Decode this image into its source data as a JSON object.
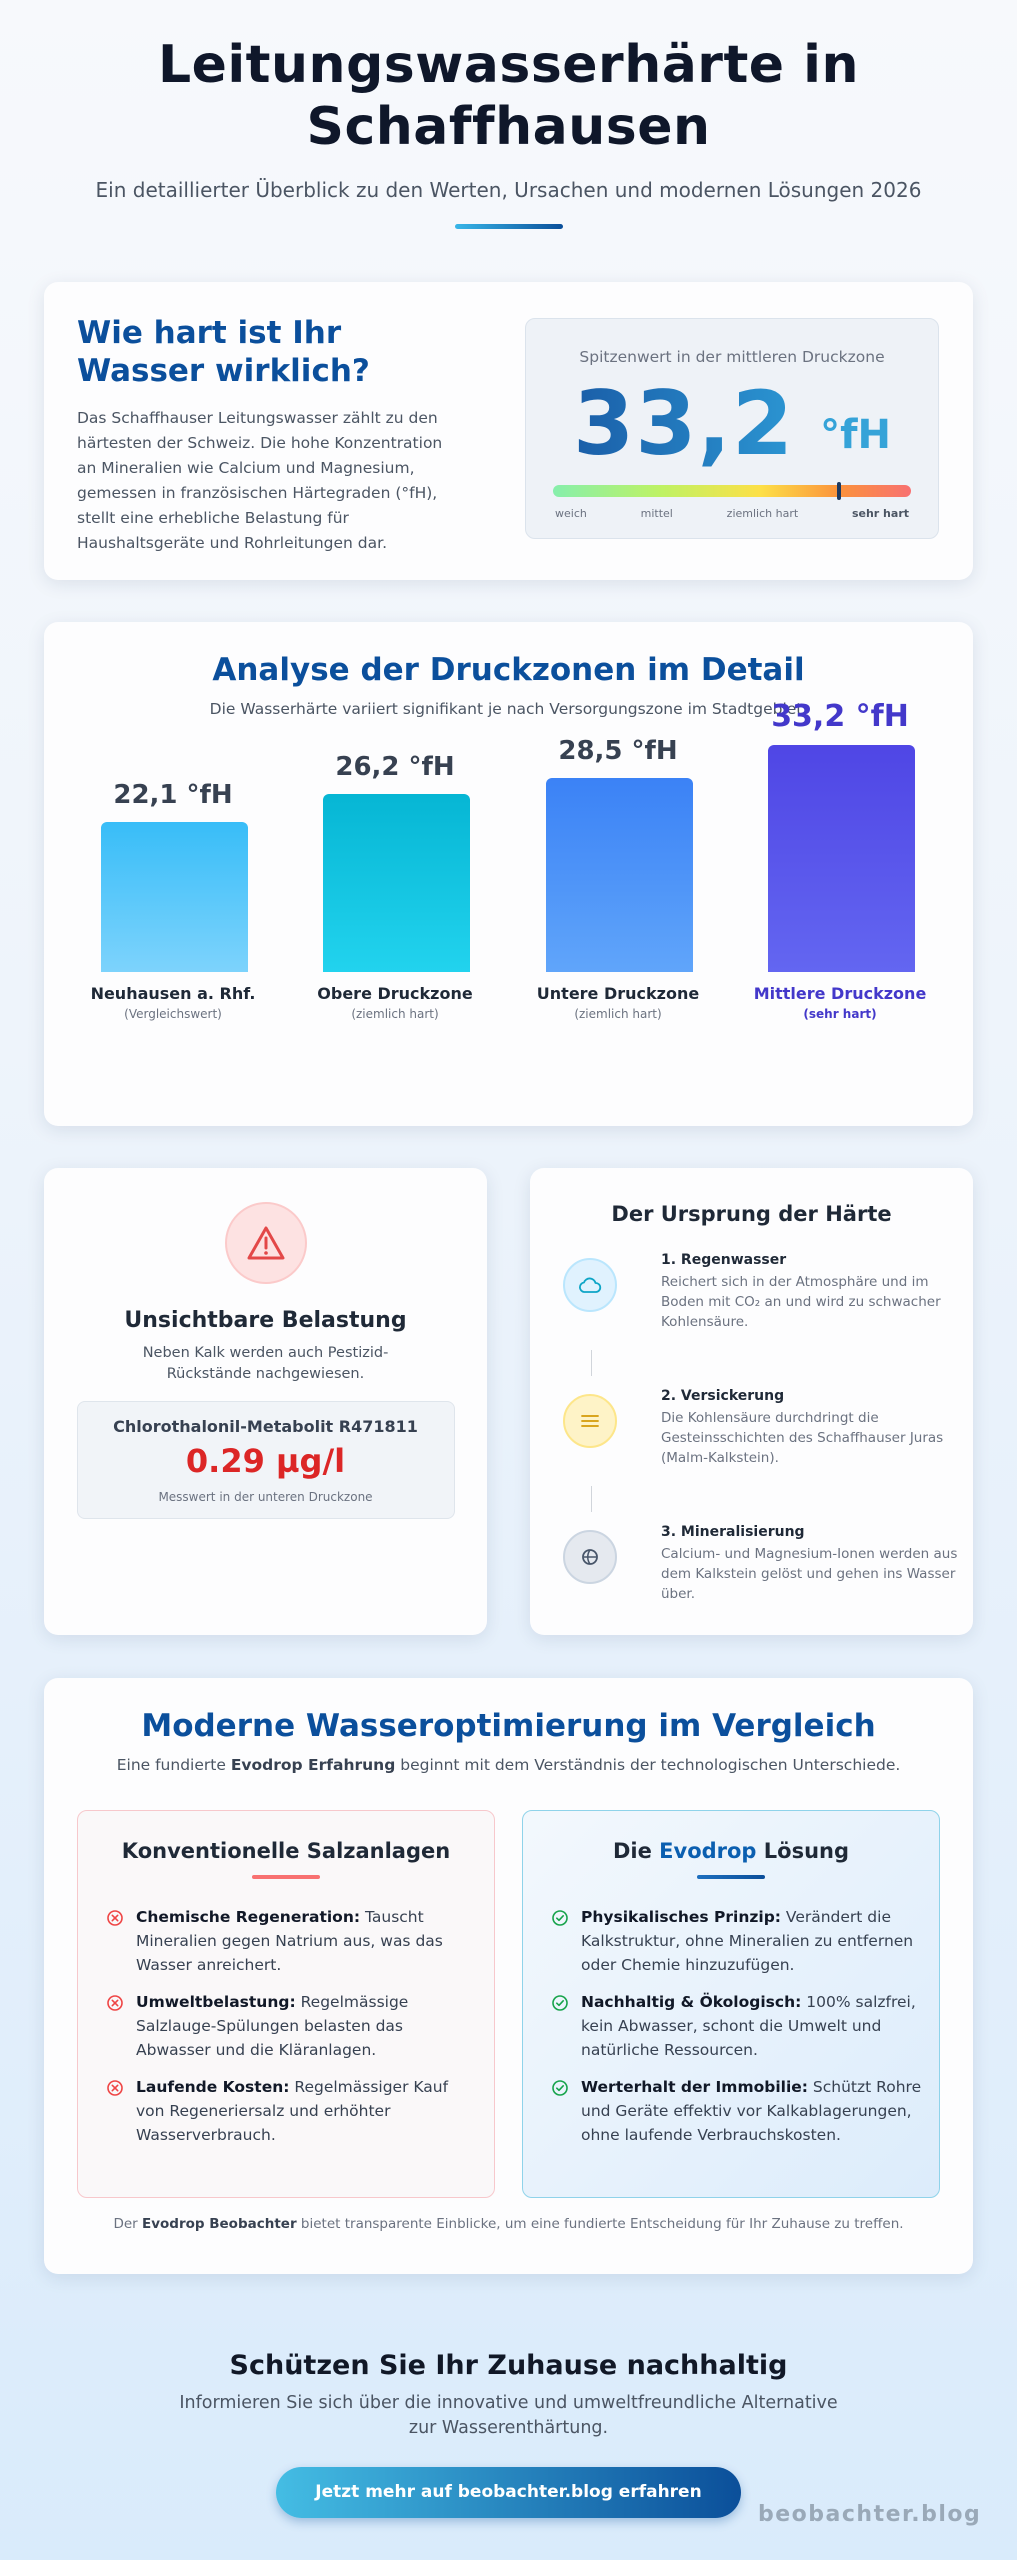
{
  "hero": {
    "title": "Leitungswasserhärte in Schaffhausen",
    "subtitle": "Ein detaillierter Überblick zu den Werten, Ursachen und modernen Lösungen 2026"
  },
  "intro": {
    "heading": "Wie hart ist Ihr Wasser wirklich?",
    "text": "Das Schaffhauser Leitungswasser zählt zu den härtesten der Schweiz. Die hohe Konzentration an Mineralien wie Calcium und Magnesium, gemessen in französischen Härtegraden (°fH), stellt eine erhebliche Belastung für Haushaltsgeräte und Rohrleitungen dar.",
    "gauge": {
      "label": "Spitzenwert in der mittleren Druckzone",
      "value": "33,2",
      "unit": "°fH",
      "level_fraction": 0.8,
      "ticks": [
        "weich",
        "mittel",
        "ziemlich hart",
        "sehr hart"
      ]
    }
  },
  "zones": {
    "heading": "Analyse der Druckzonen im Detail",
    "subtitle": "Die Wasserhärte variiert signifikant je nach Versorgungszone im Stadtgebiet.",
    "bars": [
      {
        "label": "22,1 °fH",
        "value": 22.1,
        "name": "Neuhausen a. Rhf.",
        "note": "(Vergleichswert)",
        "color_top": "#38bdf8",
        "color_bottom": "#7dd3fc",
        "highlight": false
      },
      {
        "label": "26,2 °fH",
        "value": 26.2,
        "name": "Obere Druckzone",
        "note": "(ziemlich hart)",
        "color_top": "#06b6d4",
        "color_bottom": "#22d3ee",
        "highlight": false
      },
      {
        "label": "28,5 °fH",
        "value": 28.5,
        "name": "Untere Druckzone",
        "note": "(ziemlich hart)",
        "color_top": "#3b82f6",
        "color_bottom": "#60a5fa",
        "highlight": false
      },
      {
        "label": "33,2 °fH",
        "value": 33.2,
        "name": "Mittlere Druckzone",
        "note": "(sehr hart)",
        "color_top": "#4f46e5",
        "color_bottom": "#6366f1",
        "highlight": true
      }
    ]
  },
  "burden": {
    "heading": "Unsichtbare Belastung",
    "text": "Neben Kalk werden auch Pestizid-Rückstände nachgewiesen.",
    "metric_label": "Chlorothalonil-Metabolit R471811",
    "metric_value": "0.29 µg/l",
    "metric_note": "Messwert in der unteren Druckzone"
  },
  "origin": {
    "heading": "Der Ursprung der Härte",
    "steps": [
      {
        "title": "1. Regenwasser",
        "text": "Reichert sich in der Atmosphäre und im Boden mit CO₂ an und wird zu schwacher Kohlensäure.",
        "icon": "cloud-icon"
      },
      {
        "title": "2. Versickerung",
        "text": "Die Kohlensäure durchdringt die Gesteinsschichten des Schaffhauser Juras (Malm-Kalkstein).",
        "icon": "layers-icon"
      },
      {
        "title": "3. Mineralisierung",
        "text": "Calcium- und Magnesium-Ionen werden aus dem Kalkstein gelöst und gehen ins Wasser über.",
        "icon": "mineral-icon"
      }
    ]
  },
  "compare": {
    "heading": "Moderne Wasseroptimierung im Vergleich",
    "subtitle_pre": "Eine fundierte ",
    "subtitle_bold": "Evodrop Erfahrung",
    "subtitle_post": " beginnt mit dem Verständnis der technologischen Unterschiede.",
    "left": {
      "title": "Konventionelle Salzanlagen",
      "items": [
        {
          "bold": "Chemische Regeneration:",
          "text": " Tauscht Mineralien gegen Natrium aus, was das Wasser anreichert."
        },
        {
          "bold": "Umweltbelastung:",
          "text": " Regelmässige Salzlauge-Spülungen belasten das Abwasser und die Kläranlagen."
        },
        {
          "bold": "Laufende Kosten:",
          "text": " Regelmässiger Kauf von Regeneriersalz und erhöhter Wasserverbrauch."
        }
      ]
    },
    "right": {
      "title_pre": "Die ",
      "title_brand": "Evodrop",
      "title_post": " Lösung",
      "items": [
        {
          "bold": "Physikalisches Prinzip:",
          "text": " Verändert die Kalkstruktur, ohne Mineralien zu entfernen oder Chemie hinzuzufügen."
        },
        {
          "bold": "Nachhaltig & Ökologisch:",
          "text": " 100% salzfrei, kein Abwasser, schont die Umwelt und natürliche Ressourcen."
        },
        {
          "bold": "Werterhalt der Immobilie:",
          "text": " Schützt Rohre und Geräte effektiv vor Kalkablagerungen, ohne laufende Verbrauchskosten."
        }
      ]
    },
    "footer_pre": "Der ",
    "footer_bold": "Evodrop Beobachter",
    "footer_post": " bietet transparente Einblicke, um eine fundierte Entscheidung für Ihr Zuhause zu treffen."
  },
  "cta": {
    "heading": "Schützen Sie Ihr Zuhause nachhaltig",
    "text": "Informieren Sie sich über die innovative und umweltfreundliche Alternative zur Wasserenthärtung.",
    "button": "Jetzt mehr auf beobachter.blog erfahren"
  },
  "watermark": "beobachter.blog",
  "colors": {
    "brand_blue": "#0b4f9c",
    "alert_red": "#dc2626",
    "highlight_purple": "#4338ca"
  }
}
